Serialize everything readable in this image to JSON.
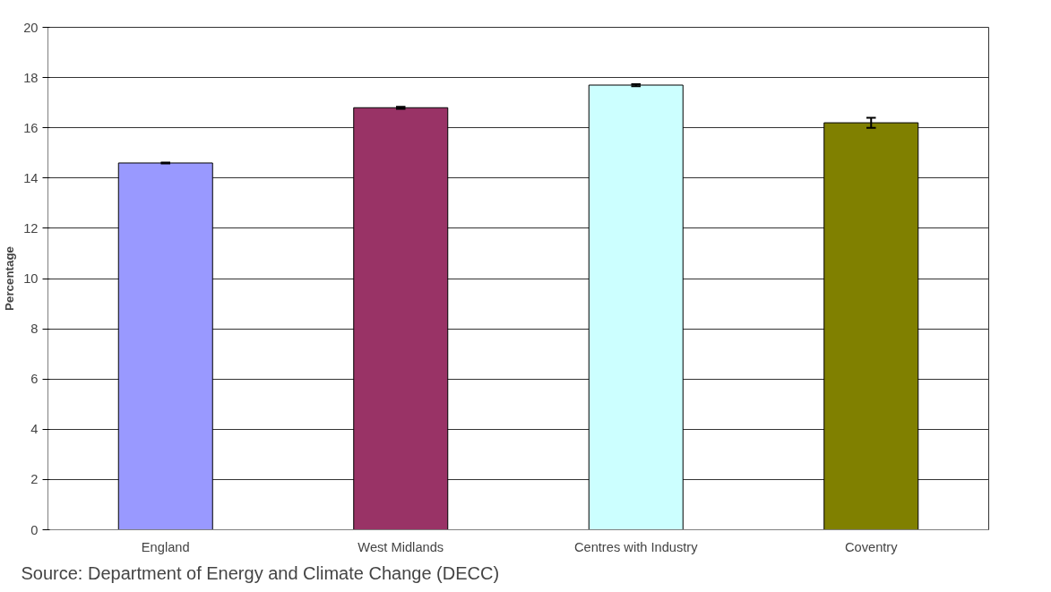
{
  "chart_data": {
    "type": "bar",
    "ylabel": "Percentage",
    "categories": [
      "England",
      "West Midlands",
      "Centres with Industry",
      "Coventry"
    ],
    "values": [
      14.6,
      16.8,
      17.7,
      16.2
    ],
    "colors": [
      "#9999ff",
      "#993366",
      "#ccffff",
      "#808000"
    ],
    "errors": [
      0.02,
      0.04,
      0.04,
      0.2
    ],
    "ylim": [
      0,
      20
    ],
    "yticks": [
      0,
      2,
      4,
      6,
      8,
      10,
      12,
      14,
      16,
      18,
      20
    ],
    "grid": "y",
    "annotations": [
      "Source: Department of Energy and Climate Change (DECC)"
    ]
  }
}
